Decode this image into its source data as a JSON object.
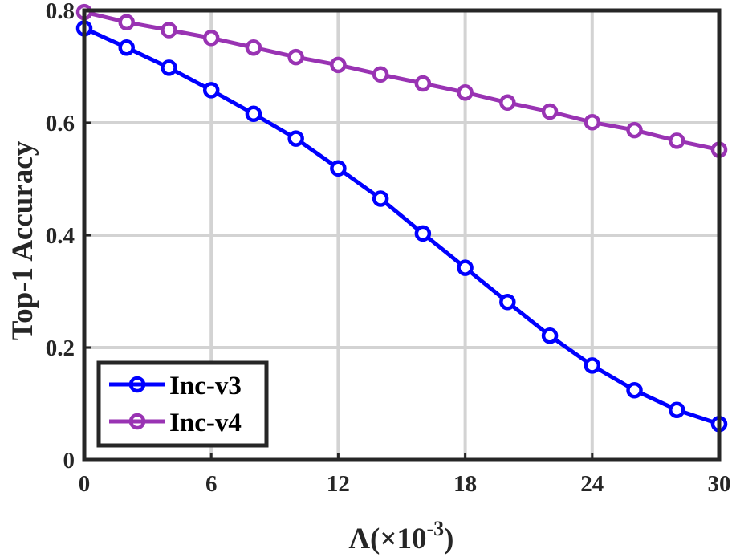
{
  "chart_data": {
    "type": "line",
    "title": "",
    "xlabel_main": "Λ(×10",
    "xlabel_sup": "-3",
    "xlabel_end": ")",
    "ylabel": "Top-1 Accuracy",
    "xlim": [
      0,
      30
    ],
    "ylim": [
      0,
      0.8
    ],
    "xticks": [
      0,
      6,
      12,
      18,
      24,
      30
    ],
    "xtick_labels": [
      "0",
      "6",
      "12",
      "18",
      "24",
      "30"
    ],
    "yticks": [
      0,
      0.2,
      0.4,
      0.6,
      0.8
    ],
    "ytick_labels": [
      "0",
      "0.2",
      "0.4",
      "0.6",
      "0.8"
    ],
    "grid": true,
    "legend_position": "bottom-left",
    "x": [
      0,
      2,
      4,
      6,
      8,
      10,
      12,
      14,
      16,
      18,
      20,
      22,
      24,
      26,
      28,
      30
    ],
    "series": [
      {
        "name": "Inc-v3",
        "color": "#0000ff",
        "values": [
          0.768,
          0.734,
          0.698,
          0.658,
          0.616,
          0.572,
          0.519,
          0.465,
          0.403,
          0.342,
          0.281,
          0.221,
          0.168,
          0.124,
          0.089,
          0.064
        ]
      },
      {
        "name": "Inc-v4",
        "color": "#9933b3",
        "values": [
          0.797,
          0.779,
          0.765,
          0.751,
          0.734,
          0.717,
          0.703,
          0.686,
          0.67,
          0.654,
          0.636,
          0.62,
          0.601,
          0.587,
          0.568,
          0.552
        ]
      }
    ]
  }
}
